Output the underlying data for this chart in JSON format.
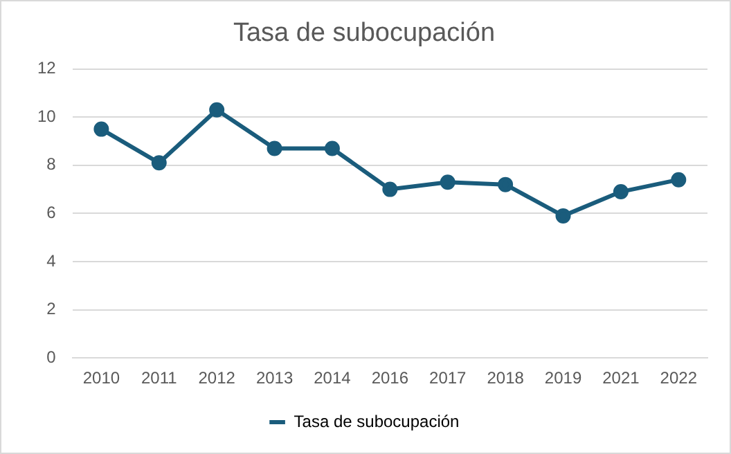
{
  "chart_data": {
    "type": "line",
    "title": "Tasa de subocupación",
    "categories": [
      "2010",
      "2011",
      "2012",
      "2013",
      "2014",
      "2016",
      "2017",
      "2018",
      "2019",
      "2021",
      "2022"
    ],
    "series": [
      {
        "name": "Tasa de subocupación",
        "color": "#1a5c7c",
        "values": [
          9.5,
          8.1,
          10.3,
          8.7,
          8.7,
          7.0,
          7.3,
          7.2,
          5.9,
          6.9,
          7.4
        ]
      }
    ],
    "ylim": [
      0,
      12
    ],
    "yticks": [
      0,
      2,
      4,
      6,
      8,
      10,
      12
    ],
    "grid": "y",
    "legend": "bottom",
    "marker": "circle",
    "line_style": "solid"
  }
}
